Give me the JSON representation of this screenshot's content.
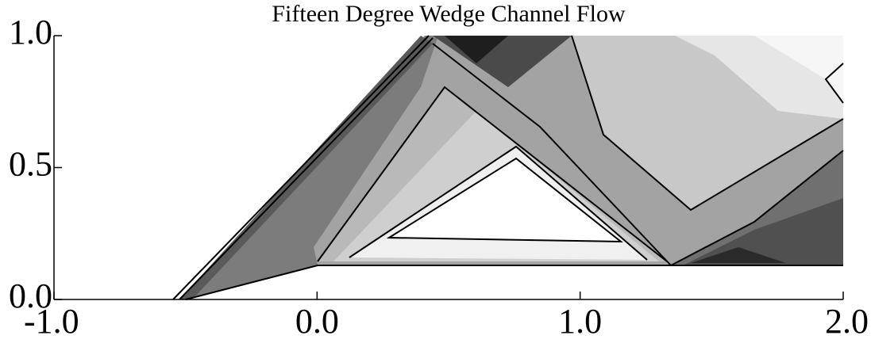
{
  "chart_data": {
    "type": "contour",
    "title": "Fifteen Degree Wedge Channel Flow",
    "xlim": [
      -1,
      2
    ],
    "ylim": [
      0,
      1
    ],
    "xticks": [
      {
        "value": -1,
        "label": "-1.0"
      },
      {
        "value": 0,
        "label": "0.0"
      },
      {
        "value": 1,
        "label": "1.0"
      },
      {
        "value": 2,
        "label": "2.0"
      }
    ],
    "yticks": [
      {
        "value": 0,
        "label": "0.0"
      },
      {
        "value": 0.5,
        "label": "0.5"
      },
      {
        "value": 1,
        "label": "1.0"
      }
    ]
  }
}
